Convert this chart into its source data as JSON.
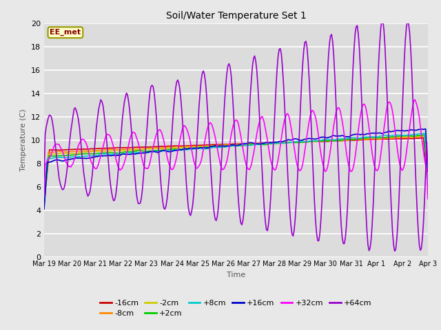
{
  "title": "Soil/Water Temperature Set 1",
  "xlabel": "Time",
  "ylabel": "Temperature (C)",
  "ylim": [
    0,
    20
  ],
  "yticks": [
    0,
    2,
    4,
    6,
    8,
    10,
    12,
    14,
    16,
    18,
    20
  ],
  "bg_color": "#dcdcdc",
  "fig_color": "#e8e8e8",
  "annotation_text": "EE_met",
  "annotation_bg": "#ffffcc",
  "annotation_edge": "#999900",
  "annotation_text_color": "#880000",
  "series": [
    {
      "label": "-16cm",
      "color": "#cc0000",
      "lw": 1.2
    },
    {
      "label": "-8cm",
      "color": "#ff8800",
      "lw": 1.2
    },
    {
      "label": "-2cm",
      "color": "#cccc00",
      "lw": 1.2
    },
    {
      "label": "+2cm",
      "color": "#00cc00",
      "lw": 1.2
    },
    {
      "label": "+8cm",
      "color": "#00cccc",
      "lw": 1.2
    },
    {
      "label": "+16cm",
      "color": "#0000cc",
      "lw": 1.2
    },
    {
      "label": "+32cm",
      "color": "#ff00ff",
      "lw": 1.2
    },
    {
      "label": "+64cm",
      "color": "#9900cc",
      "lw": 1.2
    }
  ],
  "x_tick_labels": [
    "Mar 19",
    "Mar 20",
    "Mar 21",
    "Mar 22",
    "Mar 23",
    "Mar 24",
    "Mar 25",
    "Mar 26",
    "Mar 27",
    "Mar 28",
    "Mar 29",
    "Mar 30",
    "Mar 31",
    "Apr 1",
    "Apr 2",
    "Apr 3"
  ],
  "figsize": [
    6.4,
    4.8
  ],
  "dpi": 100
}
